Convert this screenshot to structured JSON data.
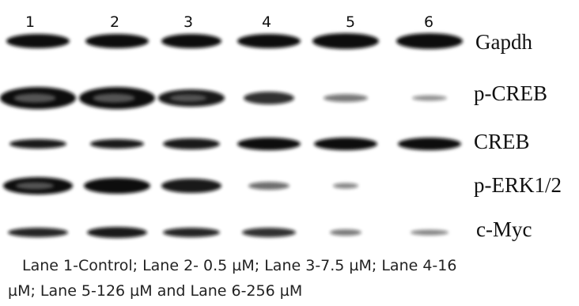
{
  "lanes": [
    "1",
    "2",
    "3",
    "4",
    "5",
    "6"
  ],
  "rows": [
    "Gapdh",
    "p-CREB",
    "CREB",
    "p-ERK1/2",
    "c-Myc"
  ],
  "caption": [
    "Lane 1-Control; Lane 2- 0.5 µM; Lane 3-7.5 µM; Lane 4-16",
    "µM; Lane 5-126 µM and Lane 6-256 µM"
  ]
}
